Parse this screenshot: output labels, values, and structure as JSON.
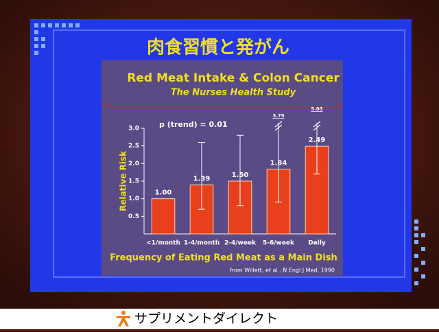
{
  "slide_title": "肉食習慣と発がん",
  "chart_data": {
    "type": "bar",
    "title": "Red Meat Intake & Colon Cancer",
    "subtitle": "The Nurses Health Study",
    "annotation": "p (trend) = 0.01",
    "y_label": "Relative Risk",
    "x_label": "Frequency of Eating Red Meat as a Main Dish",
    "source": "from Willett, et al., N Engl J Med, 1990",
    "categories": [
      "<1/month",
      "1-4/month",
      "2-4/week",
      "5-6/week",
      "Daily"
    ],
    "values": [
      1.0,
      1.39,
      1.5,
      1.84,
      2.49
    ],
    "value_labels": [
      "1.00",
      "1.39",
      "1.50",
      "1.84",
      "2.49"
    ],
    "ci_low": [
      null,
      0.7,
      0.8,
      0.9,
      1.7
    ],
    "ci_high": [
      null,
      2.6,
      2.8,
      3.75,
      5.03
    ],
    "ci_high_labels": [
      null,
      null,
      null,
      "3.75",
      "5.03"
    ],
    "color": "#e8401c",
    "ylim": [
      0,
      3.0
    ],
    "yticks": [
      0.5,
      {
        "value": 1,
        "label": "1.0"
      },
      1.5,
      {
        "value": 2,
        "label": "2.0"
      },
      2.5,
      {
        "value": 3,
        "label": "3.0"
      }
    ]
  },
  "footer": "サプリメントダイレクト"
}
